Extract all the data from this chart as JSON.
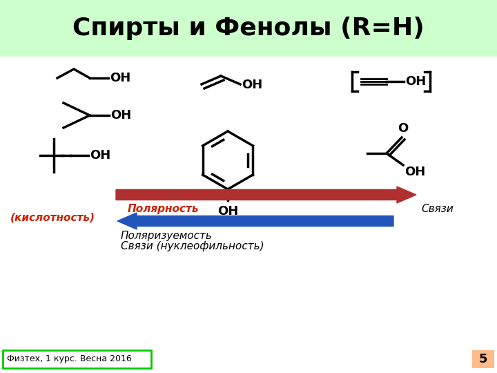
{
  "title": "Спирты и Фенолы (R=H)",
  "title_bg": "#ccffcc",
  "title_fontsize": 26,
  "bg_color": "#ffffff",
  "footer_text": "Физтех, 1 курс. Весна 2016",
  "footer_bg": "#ffffff",
  "footer_border": "#00cc00",
  "page_num": "5",
  "page_num_bg": "#ffbb88",
  "red_arrow_color": "#b03030",
  "blue_arrow_color": "#2255bb",
  "polarity_label": "Полярность",
  "polarity_label2": "(кислотность)",
  "svyazi_label": "Связи",
  "polariz_label1": "Поляризуемость",
  "polariz_label2": "Связи (нуклеофильность)",
  "label_color_red": "#cc2200",
  "label_color_black": "#000000"
}
